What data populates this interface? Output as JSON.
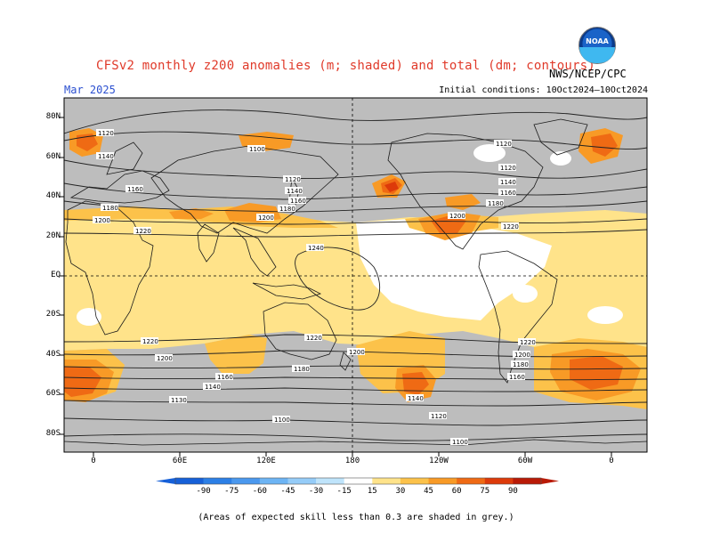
{
  "title": "CFSv2 monthly z200 anomalies (m; shaded) and total (dm; contours)",
  "target_month": "Mar 2025",
  "initial_conditions": "Initial conditions: 10Oct2024—10Oct2024",
  "agency": "NWS/NCEP/CPC",
  "logo_text": "NOAA",
  "footnote": "(Areas of expected skill less than 0.3 are shaded in grey.)",
  "y_ticks": [
    "80N",
    "60N",
    "40N",
    "20N",
    "EQ",
    "20S",
    "40S",
    "60S",
    "80S"
  ],
  "x_ticks": [
    "0",
    "60E",
    "120E",
    "180",
    "120W",
    "60W",
    "0"
  ],
  "colorbar": {
    "levels": [
      "-90",
      "-75",
      "-60",
      "-45",
      "-30",
      "-15",
      "15",
      "30",
      "45",
      "60",
      "75",
      "90"
    ],
    "colors": [
      "#1660d8",
      "#2c7fe6",
      "#4a98ee",
      "#6db4f4",
      "#95ccf8",
      "#bfe4fb",
      "#ffffff",
      "#ffe38a",
      "#fcc24a",
      "#f89a26",
      "#ef6a14",
      "#dd3a0a",
      "#b91a06"
    ]
  },
  "skill_mask_color": "#bdbdbd",
  "contour_labels": [
    "1120",
    "1140",
    "1160",
    "1180",
    "1200",
    "1220",
    "1240",
    "1100",
    "1130",
    "1150"
  ]
}
